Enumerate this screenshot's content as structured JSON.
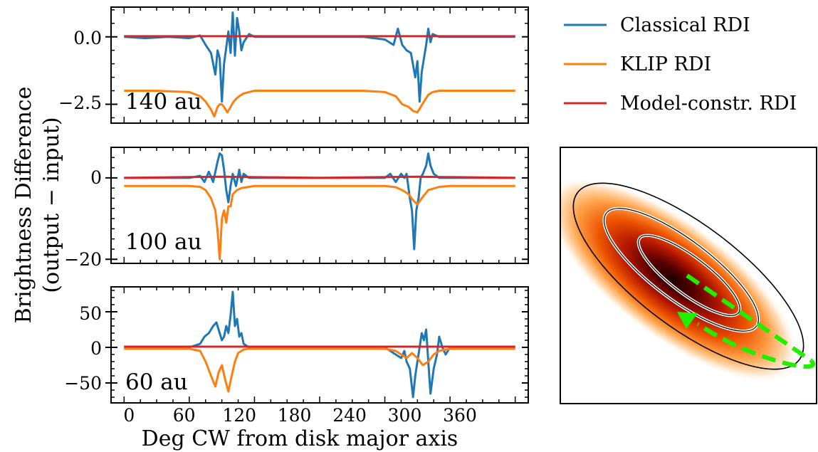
{
  "figure": {
    "ylabel_line1": "Brightness Difference",
    "ylabel_line2": "(output − input)",
    "xlabel": "Deg CW from disk major axis",
    "xticks": [
      "0",
      "60",
      "120",
      "180",
      "240",
      "300",
      "360"
    ]
  },
  "legend": [
    {
      "label": "Classical RDI",
      "color": "#1f77b4"
    },
    {
      "label": "KLIP RDI",
      "color": "#ff7f0e"
    },
    {
      "label": "Model-constr. RDI",
      "color": "#d62728"
    }
  ],
  "chart_data": [
    {
      "type": "line",
      "annotation": "140 au",
      "xlim": [
        -12,
        372
      ],
      "ylim": [
        -3.2,
        1.1
      ],
      "yticks": [
        "0.0",
        "−2.5"
      ],
      "xlabel": "",
      "series": [
        {
          "name": "Classical RDI",
          "color": "#1f77b4",
          "x": [
            0,
            20,
            40,
            60,
            70,
            75,
            80,
            84,
            86,
            88,
            90,
            92,
            94,
            96,
            98,
            100,
            102,
            104,
            106,
            108,
            110,
            115,
            120,
            140,
            180,
            220,
            240,
            248,
            252,
            256,
            260,
            264,
            268,
            270,
            272,
            274,
            276,
            278,
            280,
            282,
            284,
            290,
            300,
            330,
            360
          ],
          "y": [
            0,
            -0.05,
            0,
            -0.05,
            0.05,
            -0.3,
            -0.6,
            -1.4,
            -0.5,
            -0.8,
            -2.4,
            -1.0,
            -0.4,
            0.2,
            -0.6,
            0.9,
            -0.7,
            0.7,
            0.2,
            -0.5,
            -0.2,
            0.1,
            0,
            0,
            0,
            0,
            -0.1,
            -0.3,
            0.3,
            -0.3,
            -0.5,
            -0.6,
            -1.5,
            -0.9,
            -2.4,
            -1.3,
            -0.8,
            -0.3,
            0.3,
            -0.2,
            0.1,
            0,
            0,
            0,
            0
          ]
        },
        {
          "name": "KLIP RDI",
          "color": "#ff7f0e",
          "x": [
            0,
            30,
            60,
            70,
            75,
            80,
            83,
            86,
            88,
            90,
            92,
            95,
            98,
            100,
            103,
            106,
            110,
            120,
            140,
            180,
            220,
            240,
            250,
            256,
            262,
            266,
            270,
            273,
            276,
            280,
            284,
            290,
            300,
            330,
            360
          ],
          "y": [
            -2.0,
            -2.0,
            -2.05,
            -2.2,
            -2.4,
            -2.7,
            -2.95,
            -2.6,
            -2.5,
            -2.5,
            -2.6,
            -2.8,
            -2.6,
            -2.45,
            -2.3,
            -2.2,
            -2.1,
            -2.0,
            -2.0,
            -2.0,
            -2.0,
            -2.05,
            -2.2,
            -2.5,
            -2.6,
            -2.75,
            -2.8,
            -2.6,
            -2.4,
            -2.15,
            -2.05,
            -2.0,
            -2.0,
            -2.0,
            -2.0
          ]
        },
        {
          "name": "Model-constr. RDI",
          "color": "#d62728",
          "x": [
            0,
            90,
            180,
            270,
            360
          ],
          "y": [
            0.02,
            0.02,
            0.02,
            0.02,
            0.02
          ]
        }
      ]
    },
    {
      "type": "line",
      "annotation": "100 au",
      "xlim": [
        -12,
        372
      ],
      "ylim": [
        -21,
        7.5
      ],
      "yticks": [
        "0",
        "−20"
      ],
      "xlabel": "",
      "series": [
        {
          "name": "Classical RDI",
          "color": "#1f77b4",
          "x": [
            0,
            40,
            60,
            70,
            74,
            78,
            82,
            86,
            88,
            90,
            92,
            94,
            96,
            98,
            100,
            103,
            106,
            108,
            110,
            115,
            120,
            140,
            180,
            220,
            240,
            245,
            250,
            255,
            258,
            260,
            263,
            265,
            267,
            269,
            271,
            273,
            275,
            278,
            280,
            282,
            285,
            290,
            300,
            330,
            360
          ],
          "y": [
            0,
            0,
            0,
            0.5,
            -1,
            1.5,
            -1,
            4,
            6,
            5.5,
            2,
            -3,
            -6,
            -2,
            1,
            -2,
            2,
            -1,
            1,
            0,
            0,
            0,
            0,
            0,
            0,
            1,
            -1,
            1,
            0,
            1,
            -5,
            -8,
            -17.5,
            -8,
            -5,
            0,
            1,
            3,
            6,
            3,
            1,
            0,
            0,
            0,
            0
          ]
        },
        {
          "name": "KLIP RDI",
          "color": "#ff7f0e",
          "x": [
            0,
            40,
            60,
            70,
            75,
            80,
            84,
            86,
            88,
            90,
            92,
            94,
            96,
            98,
            100,
            104,
            108,
            115,
            120,
            140,
            180,
            220,
            240,
            250,
            256,
            262,
            266,
            270,
            274,
            280,
            290,
            300,
            330,
            360
          ],
          "y": [
            -2,
            -2,
            -2,
            -2.2,
            -3,
            -5,
            -8,
            -13,
            -20,
            -10,
            -8,
            -11,
            -7,
            -7,
            -4,
            -3,
            -2.5,
            -2.2,
            -2,
            -2,
            -2,
            -2,
            -2,
            -2.3,
            -3,
            -4,
            -5.5,
            -6.5,
            -5,
            -3,
            -2.2,
            -2,
            -2,
            -2
          ]
        },
        {
          "name": "Model-constr. RDI",
          "color": "#d62728",
          "x": [
            0,
            90,
            180,
            270,
            360
          ],
          "y": [
            0,
            0.3,
            0,
            0.3,
            0
          ]
        }
      ]
    },
    {
      "type": "line",
      "annotation": "60 au",
      "xlim": [
        -12,
        372
      ],
      "ylim": [
        -78,
        85
      ],
      "yticks": [
        "50",
        "0",
        "−50"
      ],
      "xlabel": "Deg CW from disk major axis",
      "series": [
        {
          "name": "Classical RDI",
          "color": "#1f77b4",
          "x": [
            0,
            40,
            60,
            70,
            74,
            78,
            82,
            85,
            88,
            90,
            92,
            94,
            96,
            98,
            100,
            102,
            104,
            106,
            108,
            110,
            115,
            120,
            140,
            180,
            220,
            240,
            245,
            250,
            255,
            258,
            260,
            263,
            266,
            268,
            270,
            272,
            274,
            276,
            278,
            280,
            282,
            285,
            288,
            290,
            293,
            296,
            300,
            330,
            360
          ],
          "y": [
            0,
            0,
            0,
            5,
            15,
            20,
            30,
            35,
            20,
            10,
            15,
            30,
            20,
            45,
            78,
            30,
            40,
            15,
            20,
            5,
            0,
            0,
            0,
            0,
            0,
            0,
            -5,
            -10,
            -15,
            -5,
            -20,
            -30,
            -70,
            -40,
            -20,
            0,
            20,
            10,
            25,
            -20,
            -65,
            -30,
            -10,
            15,
            0,
            -10,
            0,
            0,
            0
          ]
        },
        {
          "name": "KLIP RDI",
          "color": "#ff7f0e",
          "x": [
            0,
            40,
            60,
            70,
            75,
            80,
            84,
            87,
            90,
            93,
            96,
            99,
            102,
            105,
            110,
            115,
            120,
            140,
            180,
            220,
            240,
            250,
            255,
            260,
            265,
            270,
            275,
            280,
            285,
            290,
            300,
            330,
            360
          ],
          "y": [
            -2,
            -2,
            -2,
            -5,
            -20,
            -40,
            -55,
            -35,
            -25,
            -45,
            -62,
            -40,
            -20,
            -8,
            -3,
            -2,
            -2,
            -2,
            -2,
            -2,
            -2,
            -5,
            -10,
            -15,
            -8,
            -15,
            -25,
            -20,
            -10,
            -5,
            -2,
            -2,
            -2
          ]
        },
        {
          "name": "Model-constr. RDI",
          "color": "#d62728",
          "x": [
            0,
            90,
            180,
            270,
            360
          ],
          "y": [
            1,
            1,
            1,
            1,
            1
          ]
        }
      ]
    }
  ]
}
